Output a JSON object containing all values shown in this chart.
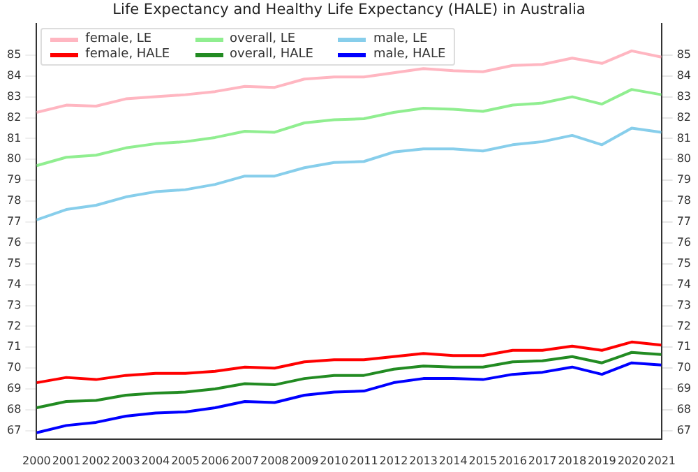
{
  "chart_data": {
    "type": "line",
    "title": "Life Expectancy and Healthy Life Expectancy (HALE) in Australia",
    "x": [
      2000,
      2001,
      2002,
      2003,
      2004,
      2005,
      2006,
      2007,
      2008,
      2009,
      2010,
      2011,
      2012,
      2013,
      2014,
      2015,
      2016,
      2017,
      2018,
      2019,
      2020,
      2021
    ],
    "series": [
      {
        "name": "female, LE",
        "color": "#ffb6c1",
        "values": [
          82.25,
          82.6,
          82.55,
          82.9,
          83.0,
          83.1,
          83.25,
          83.5,
          83.45,
          83.85,
          83.95,
          83.95,
          84.15,
          84.35,
          84.25,
          84.2,
          84.5,
          84.55,
          84.85,
          84.6,
          85.2,
          84.9
        ]
      },
      {
        "name": "female, HALE",
        "color": "#ff0000",
        "values": [
          69.3,
          69.55,
          69.45,
          69.65,
          69.75,
          69.75,
          69.85,
          70.05,
          70.0,
          70.3,
          70.4,
          70.4,
          70.55,
          70.7,
          70.6,
          70.6,
          70.85,
          70.85,
          71.05,
          70.85,
          71.25,
          71.1
        ]
      },
      {
        "name": "overall, LE",
        "color": "#90ee90",
        "values": [
          79.7,
          80.1,
          80.2,
          80.55,
          80.75,
          80.85,
          81.05,
          81.35,
          81.3,
          81.75,
          81.9,
          81.95,
          82.25,
          82.45,
          82.4,
          82.3,
          82.6,
          82.7,
          83.0,
          82.65,
          83.35,
          83.1
        ]
      },
      {
        "name": "overall, HALE",
        "color": "#228b22",
        "values": [
          68.1,
          68.4,
          68.45,
          68.7,
          68.8,
          68.85,
          69.0,
          69.25,
          69.2,
          69.5,
          69.65,
          69.65,
          69.95,
          70.1,
          70.05,
          70.05,
          70.3,
          70.35,
          70.55,
          70.25,
          70.75,
          70.65
        ]
      },
      {
        "name": "male, LE",
        "color": "#87ceeb",
        "values": [
          77.1,
          77.6,
          77.8,
          78.2,
          78.45,
          78.55,
          78.8,
          79.2,
          79.2,
          79.6,
          79.85,
          79.9,
          80.35,
          80.5,
          80.5,
          80.4,
          80.7,
          80.85,
          81.15,
          80.7,
          81.5,
          81.3
        ]
      },
      {
        "name": "male, HALE",
        "color": "#0000ff",
        "values": [
          66.9,
          67.25,
          67.4,
          67.7,
          67.85,
          67.9,
          68.1,
          68.4,
          68.35,
          68.7,
          68.85,
          68.9,
          69.3,
          69.5,
          69.5,
          69.45,
          69.7,
          69.8,
          70.05,
          69.7,
          70.25,
          70.15
        ]
      }
    ],
    "xlim": [
      2000,
      2021
    ],
    "xticks": [
      2000,
      2001,
      2002,
      2003,
      2004,
      2005,
      2006,
      2007,
      2008,
      2009,
      2010,
      2011,
      2012,
      2013,
      2014,
      2015,
      2016,
      2017,
      2018,
      2019,
      2020,
      2021
    ],
    "ylim": [
      66.6,
      86.5
    ],
    "yticks": [
      67,
      68,
      69,
      70,
      71,
      72,
      73,
      74,
      75,
      76,
      77,
      78,
      79,
      80,
      81,
      82,
      83,
      84,
      85
    ],
    "y2lim": [
      66.6,
      86.5
    ],
    "y2ticks": [
      67,
      68,
      69,
      70,
      71,
      72,
      73,
      74,
      75,
      76,
      77,
      78,
      79,
      80,
      81,
      82,
      83,
      84,
      85
    ],
    "legend": "top left",
    "marker": "none",
    "line_style": "solid",
    "grid": false
  }
}
